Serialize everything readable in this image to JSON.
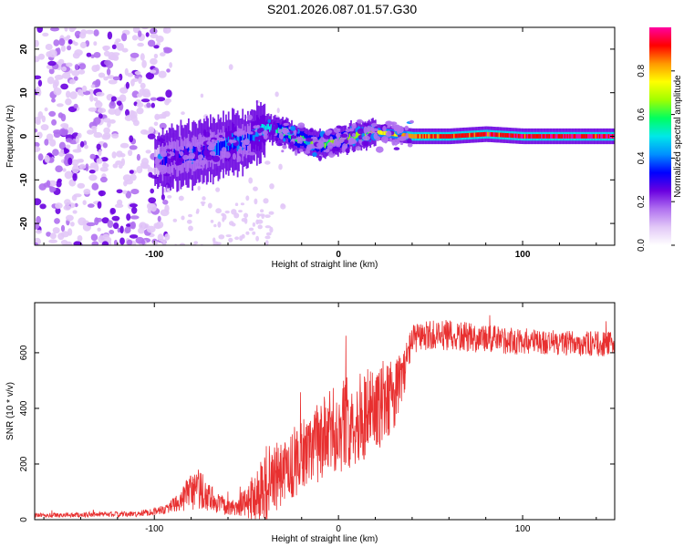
{
  "title": "S201.2026.087.01.57.G30",
  "chart_data": [
    {
      "type": "heatmap",
      "name": "spectrogram",
      "xlabel": "Height of straight line (km)",
      "ylabel": "Frequency (Hz)",
      "xlim": [
        -165,
        150
      ],
      "ylim": [
        -25,
        25
      ],
      "xticks": [
        -100,
        0,
        100
      ],
      "yticks": [
        -20,
        -10,
        0,
        10,
        20
      ],
      "colorbar": {
        "label": "Normalized spectral amplitude",
        "range": [
          0,
          1
        ],
        "ticks": [
          "0.0",
          "0.2",
          "0.4",
          "0.6",
          "0.8"
        ],
        "colors": [
          "#ffffff",
          "#e2c8f7",
          "#b070f0",
          "#6a00e0",
          "#0000ff",
          "#0090ff",
          "#00e8e8",
          "#00ff60",
          "#a0ff00",
          "#ffff00",
          "#ff9900",
          "#ff0000",
          "#ff00a0"
        ]
      },
      "ridge": {
        "x": [
          -100,
          -90,
          -80,
          -70,
          -60,
          -50,
          -40,
          -30,
          -20,
          -10,
          0,
          10,
          20,
          40,
          60,
          80,
          100,
          150
        ],
        "y": [
          -6,
          -5,
          -4,
          -3,
          -2,
          -1,
          2,
          1,
          -1,
          -2,
          -1,
          0,
          1,
          0,
          0,
          0.5,
          0,
          0
        ],
        "amplitude": [
          0.2,
          0.3,
          0.35,
          0.3,
          0.4,
          0.35,
          0.5,
          0.55,
          0.6,
          0.6,
          0.65,
          0.7,
          0.75,
          0.85,
          0.9,
          0.9,
          0.95,
          0.95
        ]
      },
      "noise_region": {
        "x_range": [
          -165,
          -100
        ],
        "amplitude": 0.15
      }
    },
    {
      "type": "line",
      "name": "snr",
      "xlabel": "Height of straight line (km)",
      "ylabel": "SNR (10 * v/v)",
      "xlim": [
        -165,
        150
      ],
      "ylim": [
        0,
        780
      ],
      "xticks": [
        -100,
        0,
        100
      ],
      "yticks": [
        0,
        200,
        400,
        600
      ],
      "color": "#e83030",
      "envelope": {
        "x": [
          -165,
          -110,
          -95,
          -85,
          -80,
          -75,
          -70,
          -60,
          -50,
          -40,
          -30,
          -20,
          -10,
          0,
          5,
          15,
          25,
          30,
          35,
          40,
          50,
          60,
          80,
          100,
          120,
          150
        ],
        "mean": [
          15,
          20,
          35,
          70,
          100,
          110,
          80,
          40,
          60,
          120,
          170,
          230,
          280,
          330,
          350,
          380,
          420,
          450,
          520,
          650,
          660,
          660,
          650,
          640,
          635,
          630
        ],
        "spread": [
          12,
          15,
          25,
          60,
          120,
          130,
          80,
          40,
          80,
          230,
          180,
          210,
          230,
          260,
          260,
          250,
          230,
          200,
          140,
          80,
          90,
          90,
          80,
          75,
          70,
          70
        ]
      }
    }
  ]
}
